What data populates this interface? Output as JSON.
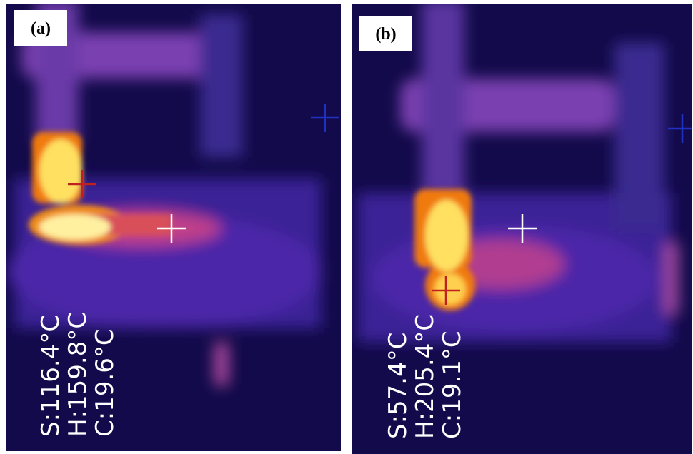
{
  "panels": [
    {
      "label": "(a)",
      "readings": [
        "S:116.4°C",
        "H:159.8°C",
        "C:19.6°C"
      ]
    },
    {
      "label": "(b)",
      "readings": [
        "S:57.4°C",
        "H:205.4°C",
        "C:19.1°C"
      ]
    }
  ]
}
